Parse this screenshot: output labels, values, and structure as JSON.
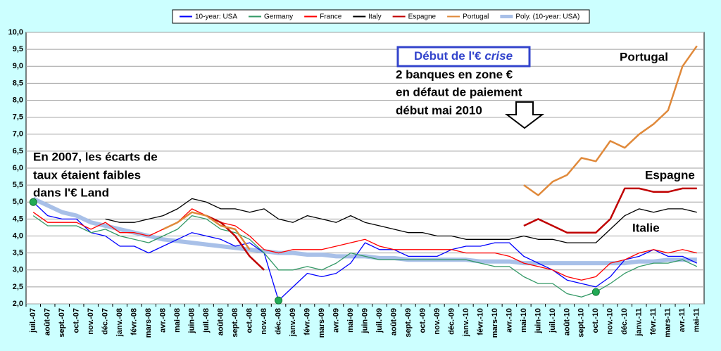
{
  "chart_data": {
    "type": "line",
    "categories": [
      "juil.-07",
      "août-07",
      "sept.-07",
      "oct.-07",
      "nov.-07",
      "déc.-07",
      "janv.-08",
      "févr.-08",
      "mars-08",
      "avr.-08",
      "mai-08",
      "juin-08",
      "juil.-08",
      "août-08",
      "sept.-08",
      "oct.-08",
      "nov.-08",
      "déc.-08",
      "janv.-09",
      "févr.-09",
      "mars-09",
      "avr.-09",
      "mai-09",
      "juin-09",
      "juil.-09",
      "août-09",
      "sept.-09",
      "oct.-09",
      "nov.-09",
      "déc.-09",
      "janv.-10",
      "févr.-10",
      "mars-10",
      "avr.-10",
      "mai-10",
      "juin-10",
      "juil.-10",
      "août-10",
      "sept.-10",
      "oct.-10",
      "nov.-10",
      "déc.-10",
      "janv.-11",
      "févr.-11",
      "mars-11",
      "avr.-11",
      "mai-11"
    ],
    "series": [
      {
        "name": "10-year: USA",
        "color": "#0000ff",
        "values": [
          5.0,
          4.6,
          4.5,
          4.5,
          4.1,
          4.0,
          3.7,
          3.7,
          3.5,
          3.7,
          3.9,
          4.1,
          4.0,
          3.9,
          3.7,
          3.8,
          3.5,
          2.1,
          2.5,
          2.9,
          2.8,
          2.9,
          3.2,
          3.8,
          3.6,
          3.6,
          3.4,
          3.4,
          3.4,
          3.6,
          3.7,
          3.7,
          3.8,
          3.8,
          3.4,
          3.2,
          3.0,
          2.7,
          2.6,
          2.5,
          2.8,
          3.3,
          3.4,
          3.6,
          3.4,
          3.4,
          3.2
        ]
      },
      {
        "name": "Germany",
        "color": "#339966",
        "values": [
          4.6,
          4.3,
          4.3,
          4.3,
          4.1,
          4.2,
          4.0,
          3.9,
          3.8,
          4.0,
          4.2,
          4.6,
          4.5,
          4.2,
          4.1,
          3.9,
          3.5,
          3.0,
          3.0,
          3.1,
          3.0,
          3.2,
          3.5,
          3.4,
          3.3,
          3.3,
          3.3,
          3.3,
          3.3,
          3.3,
          3.3,
          3.2,
          3.1,
          3.1,
          2.8,
          2.6,
          2.6,
          2.3,
          2.2,
          2.35,
          2.6,
          2.9,
          3.1,
          3.2,
          3.2,
          3.3,
          3.1
        ]
      },
      {
        "name": "France",
        "color": "#ff0000",
        "values": [
          4.7,
          4.4,
          4.4,
          4.4,
          4.2,
          4.4,
          4.1,
          4.1,
          4.0,
          4.2,
          4.4,
          4.8,
          4.6,
          4.4,
          4.3,
          4.0,
          3.6,
          3.5,
          3.6,
          3.6,
          3.6,
          3.7,
          3.8,
          3.9,
          3.7,
          3.6,
          3.6,
          3.6,
          3.6,
          3.6,
          3.5,
          3.5,
          3.5,
          3.4,
          3.2,
          3.1,
          3.0,
          2.8,
          2.7,
          2.8,
          3.2,
          3.3,
          3.5,
          3.6,
          3.5,
          3.6,
          3.5
        ]
      },
      {
        "name": "Italy",
        "color": "#000000",
        "values": [
          null,
          null,
          null,
          null,
          null,
          4.5,
          4.4,
          4.4,
          4.5,
          4.6,
          4.8,
          5.1,
          5.0,
          4.8,
          4.8,
          4.7,
          4.8,
          4.5,
          4.4,
          4.6,
          4.5,
          4.4,
          4.6,
          4.4,
          4.3,
          4.2,
          4.1,
          4.1,
          4.0,
          4.0,
          3.9,
          3.9,
          3.9,
          3.9,
          4.0,
          3.9,
          3.9,
          3.8,
          3.8,
          3.8,
          4.2,
          4.6,
          4.8,
          4.7,
          4.8,
          4.8,
          4.7
        ]
      },
      {
        "name": "Espagne",
        "color": "#c00000",
        "values": [
          null,
          null,
          null,
          null,
          null,
          null,
          null,
          null,
          null,
          null,
          null,
          null,
          4.6,
          4.4,
          4.0,
          3.4,
          3.0,
          null,
          null,
          null,
          null,
          null,
          null,
          null,
          null,
          null,
          null,
          null,
          null,
          null,
          null,
          null,
          null,
          null,
          4.3,
          4.5,
          4.3,
          4.1,
          4.1,
          4.1,
          4.5,
          5.4,
          5.4,
          5.3,
          5.3,
          5.4,
          5.4
        ]
      },
      {
        "name": "Portugal",
        "color": "#e0893a",
        "values": [
          null,
          null,
          null,
          null,
          null,
          null,
          null,
          null,
          null,
          4.2,
          4.4,
          4.7,
          4.6,
          4.3,
          4.2,
          3.6,
          null,
          null,
          null,
          null,
          null,
          null,
          null,
          null,
          null,
          null,
          null,
          null,
          null,
          null,
          null,
          null,
          null,
          null,
          5.5,
          5.2,
          5.6,
          5.8,
          6.3,
          6.2,
          6.8,
          6.6,
          7.0,
          7.3,
          7.7,
          9.0,
          9.6
        ]
      },
      {
        "name": "Poly. (10-year: USA)",
        "color": "#a8c0e8",
        "values": [
          5.1,
          4.9,
          4.7,
          4.6,
          4.4,
          4.3,
          4.2,
          4.1,
          4.0,
          3.9,
          3.85,
          3.8,
          3.75,
          3.7,
          3.65,
          3.6,
          3.55,
          3.5,
          3.5,
          3.45,
          3.45,
          3.4,
          3.4,
          3.4,
          3.35,
          3.35,
          3.3,
          3.3,
          3.3,
          3.3,
          3.3,
          3.25,
          3.25,
          3.25,
          3.2,
          3.2,
          3.2,
          3.2,
          3.2,
          3.2,
          3.2,
          3.2,
          3.25,
          3.25,
          3.3,
          3.3,
          3.3
        ]
      }
    ],
    "ylim": [
      2.0,
      10.0
    ],
    "yticks": [
      {
        "value": 2.0,
        "label": "2,0"
      },
      {
        "value": 2.5,
        "label": "2,5"
      },
      {
        "value": 3.0,
        "label": "3,0"
      },
      {
        "value": 3.5,
        "label": "3,5"
      },
      {
        "value": 4.0,
        "label": "4,0"
      },
      {
        "value": 4.5,
        "label": "4,5"
      },
      {
        "value": 5.0,
        "label": "5,0"
      },
      {
        "value": 5.5,
        "label": "5,5"
      },
      {
        "value": 6.0,
        "label": "6,0"
      },
      {
        "value": 6.5,
        "label": "6,5"
      },
      {
        "value": 7.0,
        "label": "7,0"
      },
      {
        "value": 7.5,
        "label": "7,5"
      },
      {
        "value": 8.0,
        "label": "8,0"
      },
      {
        "value": 8.5,
        "label": "8,5"
      },
      {
        "value": 9.0,
        "label": "9,0"
      },
      {
        "value": 9.5,
        "label": "9,5"
      },
      {
        "value": 10.0,
        "label": "10,0"
      }
    ],
    "grid": true,
    "legend": "top",
    "annotations": {
      "crisis_box": [
        "Début de l'€ ",
        "crise"
      ],
      "crisis_note": [
        "2 banques en zone €",
        "en défaut de paiement",
        "début mai 2010"
      ],
      "note_2007": [
        "En 2007, les écarts de",
        "taux étaient faibles",
        "dans l'€ Land"
      ],
      "series_labels": [
        "Portugal",
        "Espagne",
        "Italie"
      ]
    }
  }
}
